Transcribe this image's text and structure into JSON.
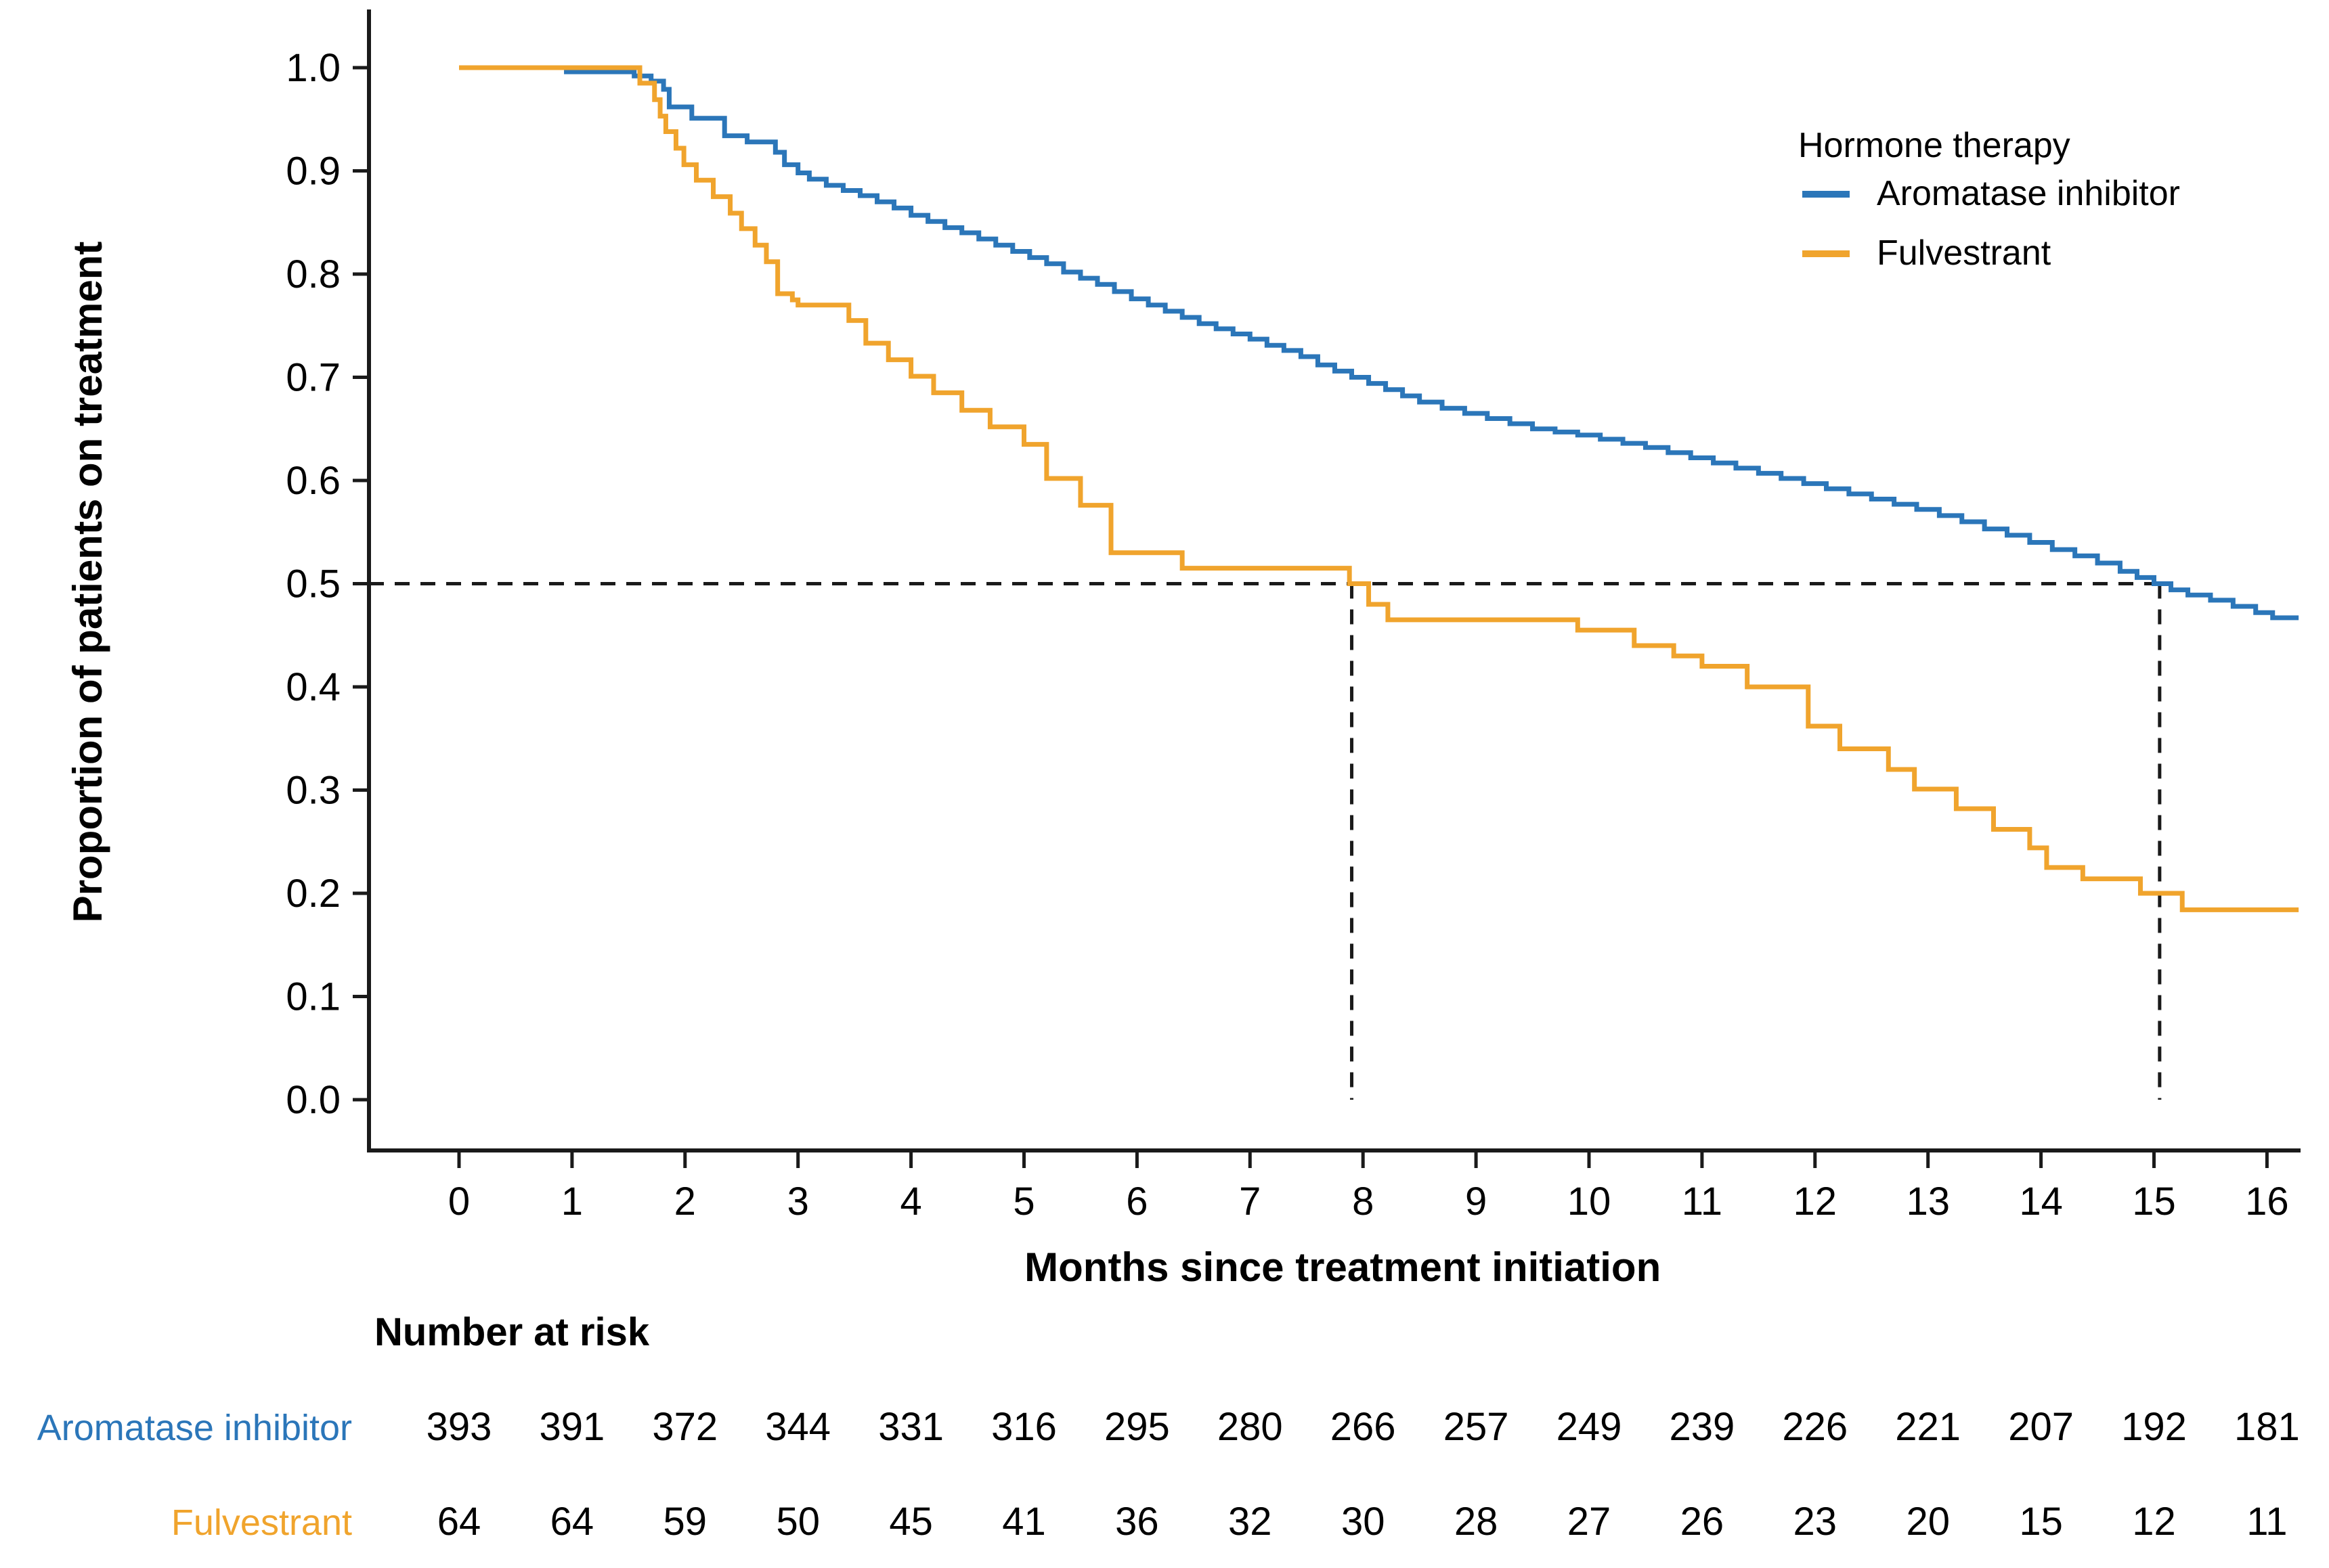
{
  "chart_data": {
    "type": "line",
    "subtype": "kaplan-meier-step",
    "title": "",
    "xlabel": "Months since treatment initiation",
    "ylabel": "Proportion of patients on treatment",
    "xlim": [
      0,
      16.28
    ],
    "ylim": [
      0.0,
      1.0
    ],
    "x_ticks": [
      0,
      1,
      2,
      3,
      4,
      5,
      6,
      7,
      8,
      9,
      10,
      11,
      12,
      13,
      14,
      15,
      16
    ],
    "y_ticks": [
      "1.0",
      "0.9",
      "0.8",
      "0.7",
      "0.6",
      "0.5",
      "0.4",
      "0.3",
      "0.2",
      "0.1",
      "0.0"
    ],
    "y_tick_values": [
      1.0,
      0.9,
      0.8,
      0.7,
      0.6,
      0.5,
      0.4,
      0.3,
      0.2,
      0.1,
      0.0
    ],
    "grid": "off",
    "legend": {
      "title": "Hormone therapy",
      "position": "top-right",
      "items": [
        {
          "label": "Aromatase inhibitor",
          "color": "#2b76b9"
        },
        {
          "label": "Fulvestrant",
          "color": "#f0a42d"
        }
      ]
    },
    "colors": {
      "aromatase_inhibitor": "#2b76b9",
      "fulvestrant": "#f0a42d",
      "axis": "#1a1a1a",
      "dashed_reference": "#1a1a1a",
      "background": "#ffffff"
    },
    "median_reference": {
      "y_value": 0.5,
      "median_times_months": [
        7.9,
        15.05
      ]
    },
    "series": [
      {
        "name": "Aromatase inhibitor",
        "color": "#2b76b9",
        "end_time": 16.28,
        "steps": [
          [
            0,
            1.0
          ],
          [
            0.95,
            0.996
          ],
          [
            1.55,
            0.992
          ],
          [
            1.7,
            0.987
          ],
          [
            1.81,
            0.979
          ],
          [
            1.86,
            0.962
          ],
          [
            2.06,
            0.951
          ],
          [
            2.35,
            0.934
          ],
          [
            2.55,
            0.928
          ],
          [
            2.8,
            0.918
          ],
          [
            2.88,
            0.906
          ],
          [
            3.0,
            0.898
          ],
          [
            3.1,
            0.892
          ],
          [
            3.25,
            0.886
          ],
          [
            3.4,
            0.881
          ],
          [
            3.55,
            0.876
          ],
          [
            3.7,
            0.87
          ],
          [
            3.85,
            0.864
          ],
          [
            4.0,
            0.857
          ],
          [
            4.15,
            0.851
          ],
          [
            4.3,
            0.845
          ],
          [
            4.45,
            0.84
          ],
          [
            4.6,
            0.834
          ],
          [
            4.75,
            0.828
          ],
          [
            4.9,
            0.822
          ],
          [
            5.05,
            0.816
          ],
          [
            5.2,
            0.81
          ],
          [
            5.35,
            0.802
          ],
          [
            5.5,
            0.796
          ],
          [
            5.65,
            0.79
          ],
          [
            5.8,
            0.783
          ],
          [
            5.95,
            0.776
          ],
          [
            6.1,
            0.77
          ],
          [
            6.25,
            0.764
          ],
          [
            6.4,
            0.758
          ],
          [
            6.55,
            0.752
          ],
          [
            6.7,
            0.747
          ],
          [
            6.85,
            0.742
          ],
          [
            7.0,
            0.737
          ],
          [
            7.15,
            0.731
          ],
          [
            7.3,
            0.726
          ],
          [
            7.45,
            0.72
          ],
          [
            7.6,
            0.712
          ],
          [
            7.75,
            0.706
          ],
          [
            7.9,
            0.7
          ],
          [
            8.05,
            0.694
          ],
          [
            8.2,
            0.688
          ],
          [
            8.35,
            0.682
          ],
          [
            8.5,
            0.676
          ],
          [
            8.7,
            0.67
          ],
          [
            8.9,
            0.665
          ],
          [
            9.1,
            0.66
          ],
          [
            9.3,
            0.655
          ],
          [
            9.5,
            0.65
          ],
          [
            9.7,
            0.647
          ],
          [
            9.9,
            0.644
          ],
          [
            10.1,
            0.64
          ],
          [
            10.3,
            0.636
          ],
          [
            10.5,
            0.632
          ],
          [
            10.7,
            0.627
          ],
          [
            10.9,
            0.622
          ],
          [
            11.1,
            0.617
          ],
          [
            11.3,
            0.612
          ],
          [
            11.5,
            0.607
          ],
          [
            11.7,
            0.602
          ],
          [
            11.9,
            0.597
          ],
          [
            12.1,
            0.592
          ],
          [
            12.3,
            0.587
          ],
          [
            12.5,
            0.582
          ],
          [
            12.7,
            0.577
          ],
          [
            12.9,
            0.572
          ],
          [
            13.1,
            0.566
          ],
          [
            13.3,
            0.56
          ],
          [
            13.5,
            0.553
          ],
          [
            13.7,
            0.547
          ],
          [
            13.9,
            0.54
          ],
          [
            14.1,
            0.533
          ],
          [
            14.3,
            0.527
          ],
          [
            14.5,
            0.52
          ],
          [
            14.7,
            0.512
          ],
          [
            14.85,
            0.506
          ],
          [
            15.0,
            0.5
          ],
          [
            15.15,
            0.494
          ],
          [
            15.3,
            0.489
          ],
          [
            15.5,
            0.484
          ],
          [
            15.7,
            0.478
          ],
          [
            15.9,
            0.472
          ],
          [
            16.05,
            0.467
          ]
        ]
      },
      {
        "name": "Fulvestrant",
        "color": "#f0a42d",
        "end_time": 16.28,
        "steps": [
          [
            0,
            1.0
          ],
          [
            1.6,
            0.985
          ],
          [
            1.73,
            0.969
          ],
          [
            1.78,
            0.953
          ],
          [
            1.83,
            0.938
          ],
          [
            1.92,
            0.922
          ],
          [
            1.99,
            0.906
          ],
          [
            2.1,
            0.891
          ],
          [
            2.25,
            0.875
          ],
          [
            2.4,
            0.859
          ],
          [
            2.5,
            0.844
          ],
          [
            2.62,
            0.828
          ],
          [
            2.72,
            0.812
          ],
          [
            2.82,
            0.781
          ],
          [
            2.95,
            0.775
          ],
          [
            3.0,
            0.77
          ],
          [
            3.45,
            0.755
          ],
          [
            3.6,
            0.733
          ],
          [
            3.8,
            0.717
          ],
          [
            4.0,
            0.701
          ],
          [
            4.2,
            0.685
          ],
          [
            4.45,
            0.668
          ],
          [
            4.7,
            0.652
          ],
          [
            5.0,
            0.635
          ],
          [
            5.2,
            0.602
          ],
          [
            5.5,
            0.576
          ],
          [
            5.77,
            0.53
          ],
          [
            6.4,
            0.515
          ],
          [
            7.88,
            0.5
          ],
          [
            8.05,
            0.48
          ],
          [
            8.22,
            0.465
          ],
          [
            9.9,
            0.455
          ],
          [
            10.4,
            0.44
          ],
          [
            10.75,
            0.43
          ],
          [
            11.0,
            0.42
          ],
          [
            11.4,
            0.4
          ],
          [
            11.94,
            0.362
          ],
          [
            12.22,
            0.34
          ],
          [
            12.65,
            0.32
          ],
          [
            12.88,
            0.301
          ],
          [
            13.25,
            0.282
          ],
          [
            13.58,
            0.262
          ],
          [
            13.9,
            0.244
          ],
          [
            14.05,
            0.225
          ],
          [
            14.37,
            0.214
          ],
          [
            14.88,
            0.2
          ],
          [
            15.25,
            0.184
          ]
        ]
      }
    ],
    "risk_table": {
      "title": "Number at risk",
      "months": [
        0,
        1,
        2,
        3,
        4,
        5,
        6,
        7,
        8,
        9,
        10,
        11,
        12,
        13,
        14,
        15,
        16
      ],
      "rows": [
        {
          "label": "Aromatase inhibitor",
          "color": "#2b76b9",
          "values": [
            393,
            391,
            372,
            344,
            331,
            316,
            295,
            280,
            266,
            257,
            249,
            239,
            226,
            221,
            207,
            192,
            181
          ]
        },
        {
          "label": "Fulvestrant",
          "color": "#f0a42d",
          "values": [
            64,
            64,
            59,
            50,
            45,
            41,
            36,
            32,
            30,
            28,
            27,
            26,
            23,
            20,
            15,
            12,
            11
          ]
        }
      ]
    }
  }
}
